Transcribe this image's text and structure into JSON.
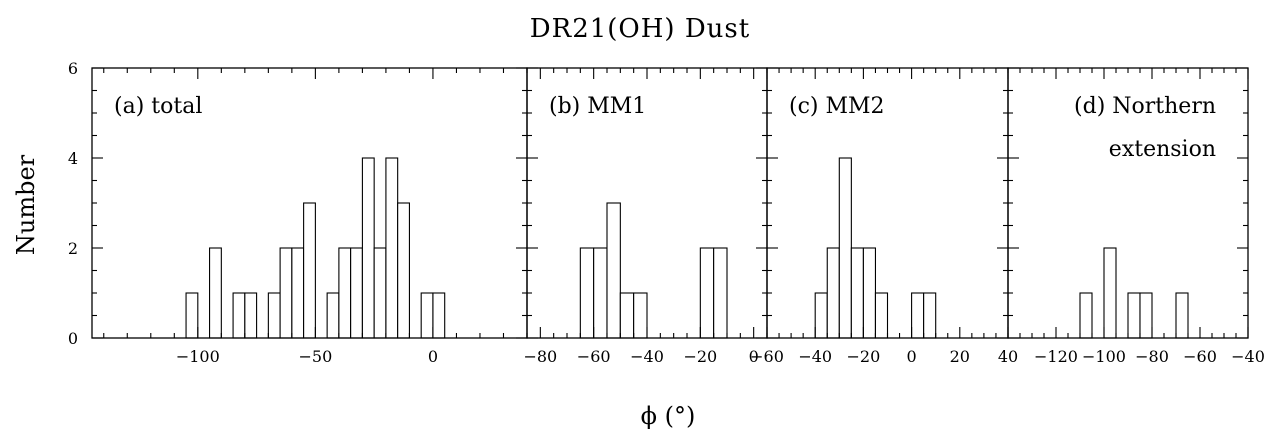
{
  "chart_data": {
    "type": "bar",
    "title": "DR21(OH) Dust",
    "xlabel": "ϕ (°)",
    "ylabel": "Number",
    "ylim": [
      0,
      6
    ],
    "y_ticks": [
      0,
      2,
      4,
      6
    ],
    "panels": [
      {
        "label": "(a) total",
        "xlim": [
          -145,
          40
        ],
        "x_ticks": [
          -100,
          -50,
          0
        ],
        "bin_width": 5,
        "bins": [
          {
            "x0": -105,
            "count": 1
          },
          {
            "x0": -100,
            "count": 0
          },
          {
            "x0": -95,
            "count": 2
          },
          {
            "x0": -90,
            "count": 0
          },
          {
            "x0": -85,
            "count": 1
          },
          {
            "x0": -80,
            "count": 1
          },
          {
            "x0": -75,
            "count": 0
          },
          {
            "x0": -70,
            "count": 1
          },
          {
            "x0": -65,
            "count": 2
          },
          {
            "x0": -60,
            "count": 2
          },
          {
            "x0": -55,
            "count": 3
          },
          {
            "x0": -50,
            "count": 0
          },
          {
            "x0": -45,
            "count": 1
          },
          {
            "x0": -40,
            "count": 2
          },
          {
            "x0": -35,
            "count": 2
          },
          {
            "x0": -30,
            "count": 4
          },
          {
            "x0": -25,
            "count": 2
          },
          {
            "x0": -20,
            "count": 4
          },
          {
            "x0": -15,
            "count": 3
          },
          {
            "x0": -10,
            "count": 0
          },
          {
            "x0": -5,
            "count": 1
          },
          {
            "x0": 0,
            "count": 1
          }
        ]
      },
      {
        "label": "(b) MM1",
        "xlim": [
          -85,
          5
        ],
        "x_ticks": [
          -80,
          -60,
          -40,
          -20,
          0
        ],
        "bin_width": 5,
        "bins": [
          {
            "x0": -65,
            "count": 2
          },
          {
            "x0": -60,
            "count": 2
          },
          {
            "x0": -55,
            "count": 3
          },
          {
            "x0": -50,
            "count": 1
          },
          {
            "x0": -45,
            "count": 1
          },
          {
            "x0": -40,
            "count": 0
          },
          {
            "x0": -35,
            "count": 0
          },
          {
            "x0": -30,
            "count": 0
          },
          {
            "x0": -25,
            "count": 0
          },
          {
            "x0": -20,
            "count": 2
          },
          {
            "x0": -15,
            "count": 2
          }
        ]
      },
      {
        "label": "(c) MM2",
        "xlim": [
          -60,
          40
        ],
        "x_ticks": [
          -60,
          -40,
          -20,
          0,
          20,
          40
        ],
        "bin_width": 5,
        "bins": [
          {
            "x0": -40,
            "count": 1
          },
          {
            "x0": -35,
            "count": 2
          },
          {
            "x0": -30,
            "count": 4
          },
          {
            "x0": -25,
            "count": 2
          },
          {
            "x0": -20,
            "count": 2
          },
          {
            "x0": -15,
            "count": 1
          },
          {
            "x0": -10,
            "count": 0
          },
          {
            "x0": -5,
            "count": 0
          },
          {
            "x0": 0,
            "count": 1
          },
          {
            "x0": 5,
            "count": 1
          }
        ]
      },
      {
        "label": "(d) Northern extension",
        "label_lines": [
          "(d) Northern",
          "extension"
        ],
        "xlim": [
          -140,
          -40
        ],
        "x_ticks": [
          -120,
          -100,
          -80,
          -60,
          -40
        ],
        "bin_width": 5,
        "bins": [
          {
            "x0": -110,
            "count": 1
          },
          {
            "x0": -105,
            "count": 0
          },
          {
            "x0": -100,
            "count": 2
          },
          {
            "x0": -95,
            "count": 0
          },
          {
            "x0": -90,
            "count": 1
          },
          {
            "x0": -85,
            "count": 1
          },
          {
            "x0": -80,
            "count": 0
          },
          {
            "x0": -75,
            "count": 0
          },
          {
            "x0": -70,
            "count": 1
          }
        ]
      }
    ]
  }
}
